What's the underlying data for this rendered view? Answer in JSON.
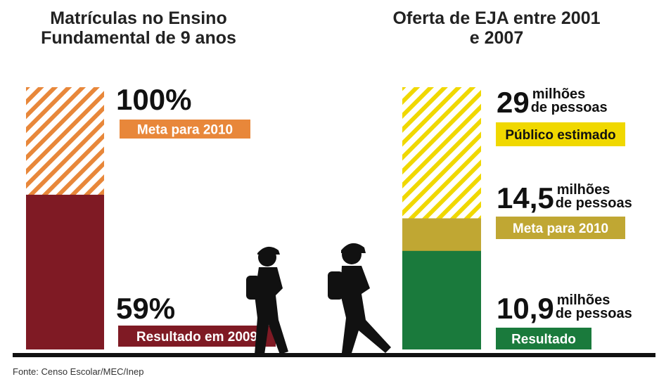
{
  "chart_data": [
    {
      "type": "bar",
      "title": "Matrículas no Ensino Fundamental de 9 anos",
      "categories": [
        "Meta para 2010",
        "Resultado em 2009"
      ],
      "values": [
        100,
        59
      ],
      "value_labels": [
        "100%",
        "59%"
      ],
      "colors": [
        "#e8873a",
        "#7f1a24"
      ],
      "hatched": [
        true,
        false
      ],
      "ylim": [
        0,
        100
      ]
    },
    {
      "type": "bar",
      "title": "Oferta de EJA entre 2001 e 2007",
      "categories": [
        "Público estimado",
        "Meta para 2010",
        "Resultado"
      ],
      "values": [
        29,
        14.5,
        10.9
      ],
      "value_labels": [
        "29",
        "14,5",
        "10,9"
      ],
      "unit_top": "milhões",
      "unit_bottom": "de pessoas",
      "colors": [
        "#f0d800",
        "#c0a733",
        "#1a7a3c"
      ],
      "hatched": [
        true,
        false,
        false
      ],
      "ylim": [
        0,
        29
      ]
    }
  ],
  "source": "Fonte: Censo Escolar/MEC/Inep"
}
